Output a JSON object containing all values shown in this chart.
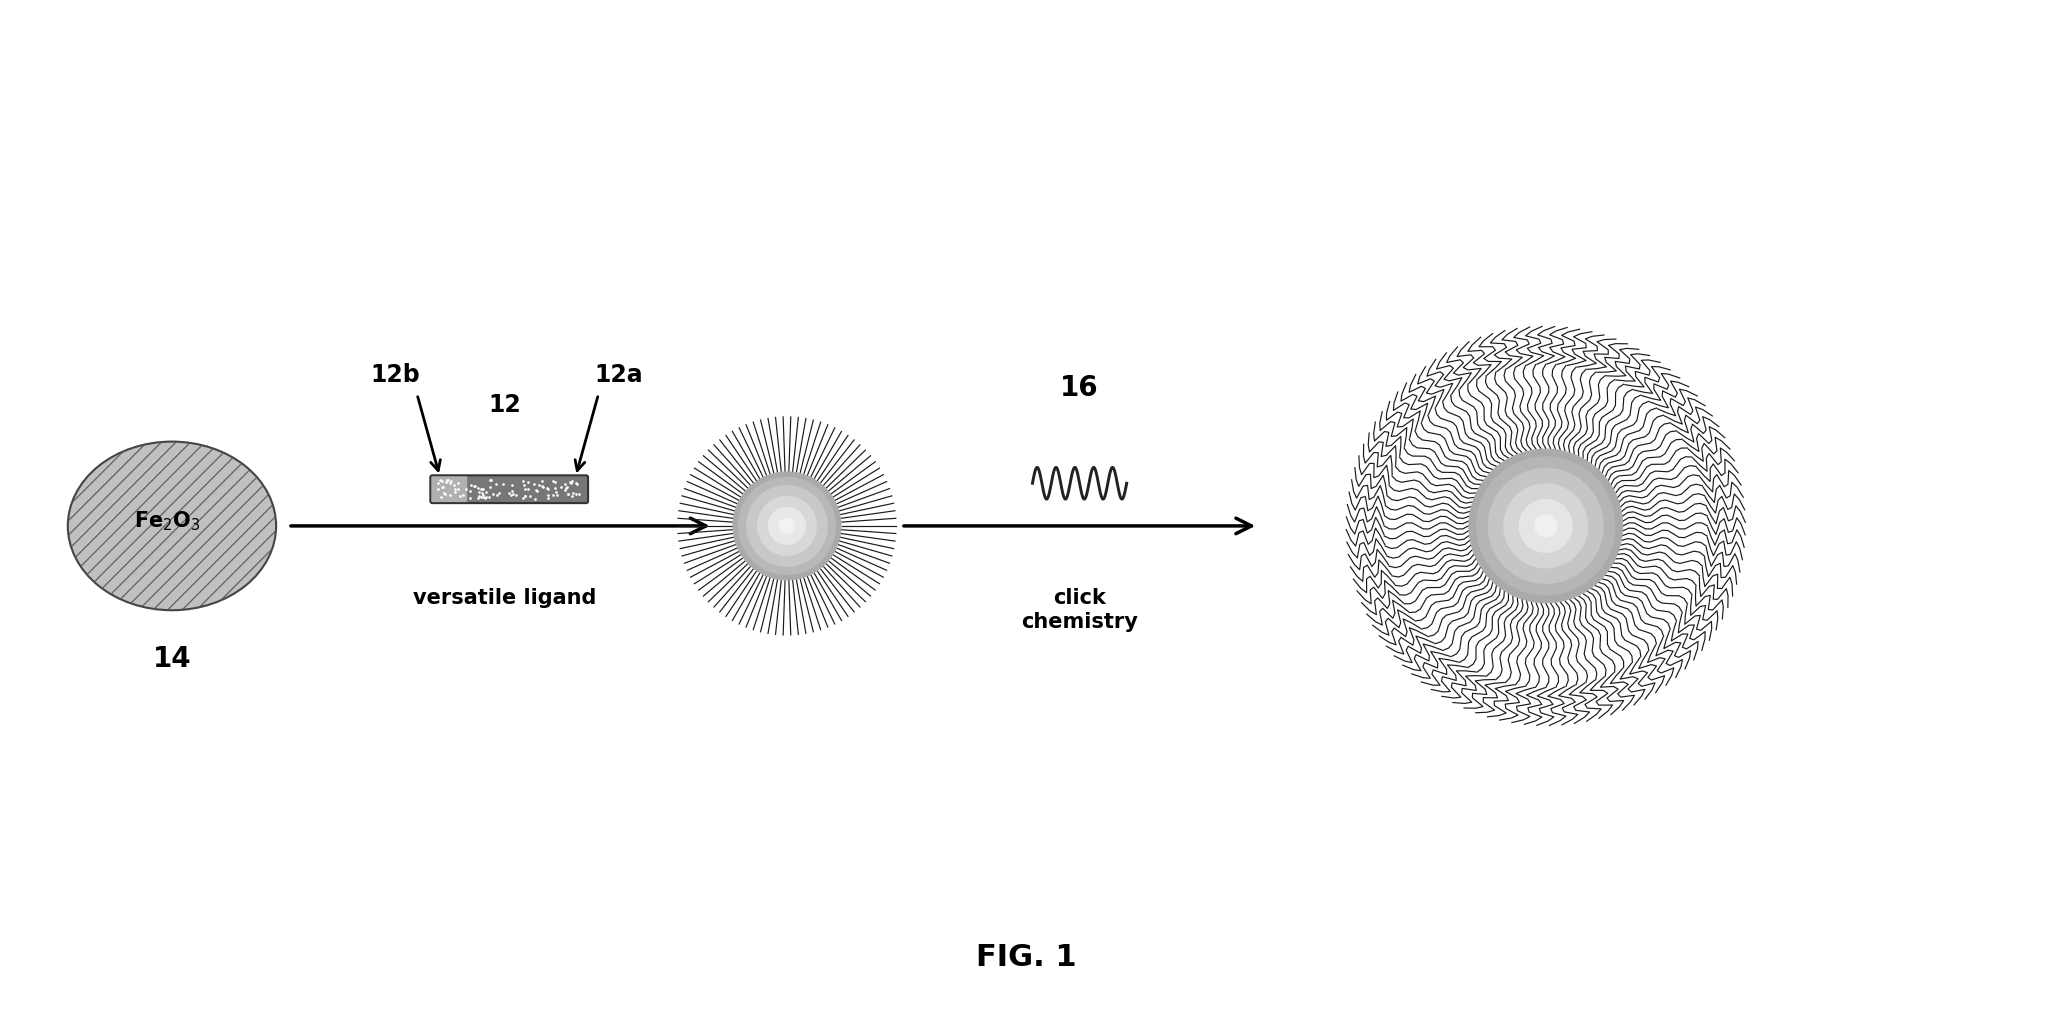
{
  "bg_color": "#ffffff",
  "fig_width": 20.52,
  "fig_height": 10.31,
  "title": "FIG. 1",
  "labels": {
    "fe2o3": "Fe₂O₃",
    "label_14": "14",
    "label_12": "12",
    "label_12a": "12a",
    "label_12b": "12b",
    "label_16": "16",
    "versatile_ligand": "versatile ligand",
    "click_chemistry": "click\nchemistry"
  }
}
